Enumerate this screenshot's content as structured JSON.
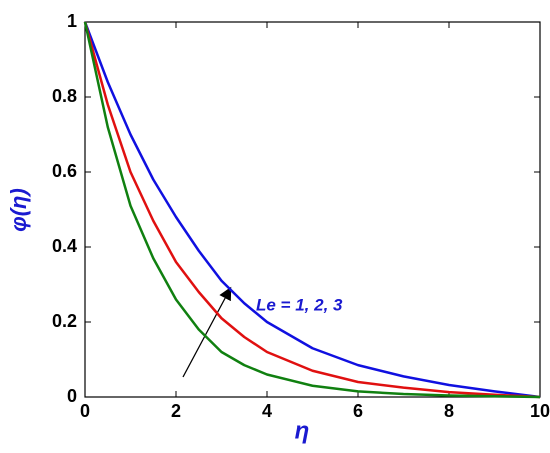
{
  "chart_data": {
    "type": "line",
    "xlabel": "η",
    "ylabel": "φ(η)",
    "annotation": "Le = 1, 2, 3",
    "x": [
      0,
      0.5,
      1,
      1.5,
      2,
      2.5,
      3,
      3.5,
      4,
      5,
      6,
      7,
      8,
      9,
      10
    ],
    "series": [
      {
        "color": "#1010e0",
        "values": [
          1,
          0.84,
          0.7,
          0.58,
          0.48,
          0.39,
          0.31,
          0.25,
          0.2,
          0.13,
          0.085,
          0.055,
          0.032,
          0.015,
          0
        ]
      },
      {
        "color": "#e01010",
        "values": [
          1,
          0.78,
          0.6,
          0.47,
          0.36,
          0.28,
          0.21,
          0.16,
          0.12,
          0.07,
          0.04,
          0.025,
          0.013,
          0.006,
          0
        ]
      },
      {
        "color": "#108010",
        "values": [
          1,
          0.72,
          0.51,
          0.37,
          0.26,
          0.18,
          0.12,
          0.085,
          0.06,
          0.03,
          0.015,
          0.008,
          0.004,
          0.002,
          0
        ]
      }
    ],
    "xlim": [
      0,
      10
    ],
    "xticks": [
      0,
      2,
      4,
      6,
      8,
      10
    ],
    "ylim": [
      0,
      1
    ],
    "yticks": [
      0,
      0.2,
      0.4,
      0.6,
      0.8,
      1
    ]
  }
}
